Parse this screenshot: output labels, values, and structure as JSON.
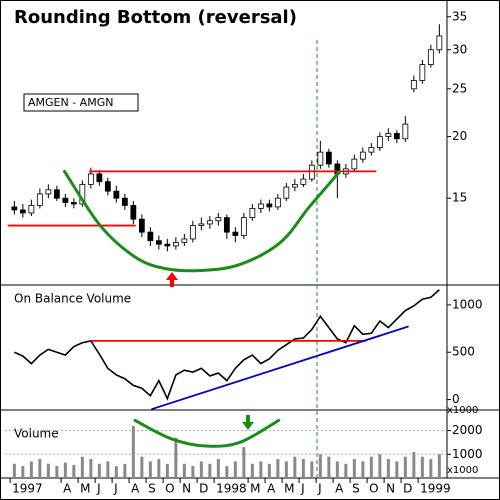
{
  "chart_data": [
    {
      "type": "candlestick",
      "title": "Rounding Bottom (reversal)",
      "label": "AMGEN - AMGN",
      "x": [
        0.25,
        0.75,
        1.25,
        1.75,
        2.25,
        2.75,
        3.25,
        3.75,
        4.25,
        4.75,
        5.25,
        5.75,
        6.25,
        6.75,
        7.25,
        7.75,
        8.25,
        8.75,
        9.25,
        9.75,
        10.25,
        10.75,
        11.25,
        11.75,
        12.25,
        12.75,
        13.25,
        13.75,
        14.25,
        14.75,
        15.25,
        15.75,
        16.25,
        16.75,
        17.25,
        17.75,
        18.25,
        18.75,
        19.25,
        19.75,
        20.25,
        20.75,
        21.25,
        21.75,
        22.25,
        22.75,
        23.25,
        23.75,
        24.25,
        24.75,
        25.25
      ],
      "open": [
        14.4,
        14.2,
        14.0,
        14.5,
        15.3,
        15.6,
        15.0,
        14.7,
        14.6,
        16.0,
        16.8,
        16.2,
        15.5,
        15.0,
        14.5,
        13.6,
        12.8,
        12.3,
        12.1,
        12.0,
        12.2,
        12.4,
        13.2,
        13.3,
        13.5,
        13.7,
        12.8,
        12.6,
        13.7,
        14.3,
        14.6,
        14.4,
        15.0,
        15.8,
        16.0,
        16.4,
        17.5,
        18.6,
        17.6,
        16.8,
        17.2,
        18.0,
        18.6,
        19.0,
        20.0,
        20.3,
        19.8,
        25.0,
        26.0,
        28.0,
        30.0
      ],
      "high": [
        14.8,
        14.6,
        14.9,
        15.7,
        16.0,
        15.9,
        15.3,
        15.0,
        16.3,
        17.3,
        17.1,
        16.5,
        15.9,
        15.3,
        14.8,
        13.9,
        13.1,
        12.6,
        12.4,
        12.5,
        12.7,
        13.5,
        13.7,
        13.8,
        14.0,
        13.9,
        13.1,
        14.0,
        14.6,
        14.9,
        14.9,
        15.3,
        16.1,
        16.4,
        16.8,
        17.9,
        19.6,
        18.9,
        17.9,
        17.6,
        18.4,
        19.0,
        19.4,
        20.4,
        20.8,
        20.6,
        22.0,
        26.6,
        28.6,
        30.7,
        33.8
      ],
      "low": [
        13.9,
        13.7,
        13.8,
        14.3,
        15.0,
        14.8,
        14.4,
        14.3,
        14.4,
        15.7,
        15.9,
        15.2,
        14.7,
        14.2,
        13.3,
        12.5,
        12.0,
        11.8,
        11.7,
        11.8,
        12.0,
        12.2,
        12.9,
        13.0,
        13.2,
        12.4,
        12.2,
        12.4,
        13.5,
        14.0,
        14.1,
        14.2,
        14.8,
        15.5,
        15.8,
        16.2,
        17.2,
        17.3,
        15.0,
        16.5,
        17.0,
        17.7,
        18.3,
        18.7,
        19.6,
        19.4,
        19.5,
        24.6,
        25.6,
        27.6,
        29.5
      ],
      "close": [
        14.2,
        14.0,
        14.5,
        15.3,
        15.6,
        15.0,
        14.7,
        14.6,
        16.0,
        16.8,
        16.2,
        15.5,
        15.0,
        14.5,
        13.6,
        12.8,
        12.3,
        12.1,
        12.0,
        12.2,
        12.4,
        13.2,
        13.3,
        13.5,
        13.7,
        12.8,
        12.6,
        13.7,
        14.3,
        14.6,
        14.4,
        15.0,
        15.8,
        16.0,
        16.4,
        17.5,
        18.6,
        17.6,
        16.8,
        17.2,
        18.0,
        18.6,
        19.0,
        20.0,
        20.3,
        19.8,
        21.2,
        26.0,
        28.0,
        30.0,
        32.0
      ],
      "color": "#000000",
      "log_scale": true,
      "xlim": [
        -0.3,
        25.7
      ],
      "ylim": [
        10,
        37.5
      ],
      "yticks": [
        15,
        20,
        25,
        30,
        35
      ],
      "lines": [
        {
          "color": "#ff0000",
          "x": [
            4.7,
            21.5
          ],
          "y": [
            17.0,
            17.0
          ]
        },
        {
          "color": "#ff0000",
          "x": [
            -0.1,
            7.35
          ],
          "y": [
            13.2,
            13.2
          ]
        },
        {
          "color": "#1a8c1a",
          "x": [
            3.2,
            5.3,
            7.35,
            9.1,
            11.2,
            13.5,
            15.9,
            17.6,
            19.4
          ],
          "y": [
            17.0,
            13.2,
            11.4,
            10.8,
            10.7,
            11.0,
            12.2,
            14.4,
            17.0
          ]
        }
      ]
    },
    {
      "type": "line",
      "title": "On Balance Volume",
      "x": [
        0.25,
        0.75,
        1.25,
        1.75,
        2.25,
        2.75,
        3.25,
        3.75,
        4.25,
        4.75,
        5.25,
        5.75,
        6.25,
        6.75,
        7.25,
        7.75,
        8.25,
        8.75,
        9.25,
        9.75,
        10.25,
        10.75,
        11.25,
        11.75,
        12.25,
        12.75,
        13.25,
        13.75,
        14.25,
        14.75,
        15.25,
        15.75,
        16.25,
        16.75,
        17.25,
        17.75,
        18.25,
        18.75,
        19.25,
        19.75,
        20.25,
        20.75,
        21.25,
        21.75,
        22.25,
        22.75,
        23.25,
        23.75,
        24.25,
        24.75,
        25.25
      ],
      "values": [
        500,
        460,
        380,
        470,
        530,
        500,
        470,
        560,
        600,
        620,
        480,
        330,
        260,
        220,
        150,
        120,
        40,
        200,
        10,
        260,
        310,
        290,
        330,
        250,
        280,
        200,
        330,
        420,
        470,
        380,
        430,
        520,
        580,
        640,
        650,
        740,
        880,
        760,
        640,
        600,
        780,
        690,
        700,
        830,
        760,
        850,
        940,
        990,
        1060,
        1080,
        1160
      ],
      "color": "#000000",
      "xlim": [
        -0.3,
        25.7
      ],
      "ylim": [
        -110,
        1210
      ],
      "yticks": [
        0,
        500,
        1000
      ],
      "lines": [
        {
          "color": "#ff0000",
          "x": [
            4.8,
            20.9
          ],
          "y": [
            620,
            620
          ]
        },
        {
          "color": "#0000cc",
          "x": [
            8.35,
            23.4
          ],
          "y": [
            -100,
            770
          ]
        }
      ]
    },
    {
      "type": "bar",
      "title": "Volume",
      "unit_labels": [
        "x1000",
        "x1000"
      ],
      "x": [
        0.25,
        0.75,
        1.25,
        1.75,
        2.25,
        2.75,
        3.25,
        3.75,
        4.25,
        4.75,
        5.25,
        5.75,
        6.25,
        6.75,
        7.25,
        7.75,
        8.25,
        8.75,
        9.25,
        9.75,
        10.25,
        10.75,
        11.25,
        11.75,
        12.25,
        12.75,
        13.25,
        13.75,
        14.25,
        14.75,
        15.25,
        15.75,
        16.25,
        16.75,
        17.25,
        17.75,
        18.25,
        18.75,
        19.25,
        19.75,
        20.25,
        20.75,
        21.25,
        21.75,
        22.25,
        22.75,
        23.25,
        23.75,
        24.25,
        24.75,
        25.25
      ],
      "values": [
        600,
        500,
        700,
        800,
        600,
        500,
        650,
        550,
        900,
        800,
        600,
        700,
        500,
        600,
        2200,
        900,
        700,
        800,
        600,
        1700,
        600,
        500,
        700,
        600,
        800,
        500,
        700,
        1300,
        600,
        700,
        600,
        800,
        700,
        900,
        800,
        700,
        1000,
        900,
        700,
        600,
        800,
        700,
        900,
        1000,
        800,
        700,
        900,
        1100,
        900,
        800,
        1000
      ],
      "color": "#888888",
      "grid": true,
      "xlim": [
        -0.3,
        25.7
      ],
      "ylim": [
        0,
        2870
      ],
      "yticks": [
        1000,
        2000
      ],
      "xticks": [
        {
          "value": 0,
          "label": "1997"
        },
        {
          "value": 3,
          "label": "A"
        },
        {
          "value": 4,
          "label": "M"
        },
        {
          "value": 5,
          "label": "J"
        },
        {
          "value": 6,
          "label": "J"
        },
        {
          "value": 7,
          "label": "A"
        },
        {
          "value": 8,
          "label": "S"
        },
        {
          "value": 9,
          "label": "O"
        },
        {
          "value": 10,
          "label": "N"
        },
        {
          "value": 11,
          "label": "D"
        },
        {
          "value": 12,
          "label": "1998"
        },
        {
          "value": 14,
          "label": "M"
        },
        {
          "value": 15,
          "label": "A"
        },
        {
          "value": 16,
          "label": "M"
        },
        {
          "value": 17,
          "label": "J"
        },
        {
          "value": 18,
          "label": "J"
        },
        {
          "value": 19,
          "label": "A"
        },
        {
          "value": 20,
          "label": "S"
        },
        {
          "value": 21,
          "label": "O"
        },
        {
          "value": 22,
          "label": "N"
        },
        {
          "value": 23,
          "label": "D"
        },
        {
          "value": 24,
          "label": "1999"
        }
      ],
      "lines": [
        {
          "color": "#1a8c1a",
          "x": [
            7.35,
            9.5,
            11.5,
            13.5,
            15.8
          ],
          "y": [
            2430,
            1650,
            1350,
            1500,
            2430
          ]
        }
      ]
    }
  ]
}
